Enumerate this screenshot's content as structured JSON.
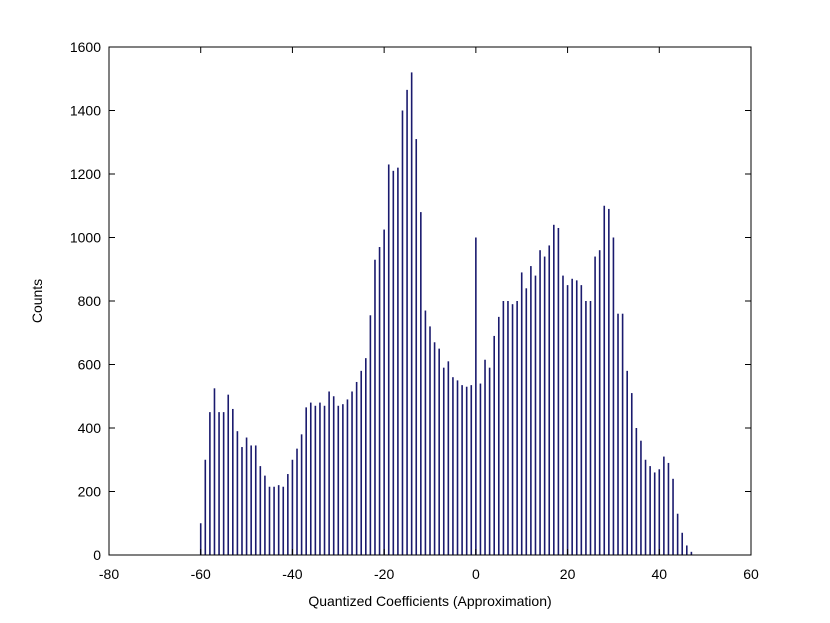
{
  "chart_data": {
    "type": "bar",
    "xlabel": "Quantized Coefficients (Approximation)",
    "ylabel": "Counts",
    "color": "#1a1a6e",
    "x": [
      -60,
      -59,
      -58,
      -57,
      -56,
      -55,
      -54,
      -53,
      -52,
      -51,
      -50,
      -49,
      -48,
      -47,
      -46,
      -45,
      -44,
      -43,
      -42,
      -41,
      -40,
      -39,
      -38,
      -37,
      -36,
      -35,
      -34,
      -33,
      -32,
      -31,
      -30,
      -29,
      -28,
      -27,
      -26,
      -25,
      -24,
      -23,
      -22,
      -21,
      -20,
      -19,
      -18,
      -17,
      -16,
      -15,
      -14,
      -13,
      -12,
      -11,
      -10,
      -9,
      -8,
      -7,
      -6,
      -5,
      -4,
      -3,
      -2,
      -1,
      0,
      1,
      2,
      3,
      4,
      5,
      6,
      7,
      8,
      9,
      10,
      11,
      12,
      13,
      14,
      15,
      16,
      17,
      18,
      19,
      20,
      21,
      22,
      23,
      24,
      25,
      26,
      27,
      28,
      29,
      30,
      31,
      32,
      33,
      34,
      35,
      36,
      37,
      38,
      39,
      40,
      41,
      42,
      43,
      44,
      45,
      46,
      47
    ],
    "values": [
      100,
      300,
      450,
      525,
      450,
      450,
      505,
      460,
      390,
      340,
      370,
      345,
      345,
      280,
      250,
      215,
      215,
      220,
      215,
      255,
      300,
      335,
      380,
      465,
      480,
      470,
      480,
      470,
      515,
      500,
      470,
      475,
      490,
      515,
      545,
      580,
      620,
      755,
      930,
      970,
      1025,
      1230,
      1210,
      1220,
      1400,
      1465,
      1520,
      1310,
      1080,
      770,
      720,
      670,
      650,
      590,
      610,
      560,
      550,
      535,
      530,
      535,
      1000,
      540,
      615,
      590,
      690,
      750,
      800,
      800,
      790,
      800,
      890,
      840,
      910,
      880,
      960,
      940,
      975,
      1040,
      1030,
      880,
      850,
      870,
      865,
      850,
      800,
      800,
      940,
      960,
      1100,
      1090,
      1000,
      760,
      760,
      580,
      510,
      400,
      360,
      300,
      280,
      260,
      270,
      310,
      290,
      240,
      130,
      70,
      30,
      10
    ],
    "xlim": [
      -80,
      60
    ],
    "xticks": [
      -80,
      -60,
      -40,
      -20,
      0,
      20,
      40,
      60
    ],
    "ylim": [
      0,
      1600
    ],
    "yticks": [
      0,
      200,
      400,
      600,
      800,
      1000,
      1200,
      1400,
      1600
    ],
    "grid": false
  }
}
